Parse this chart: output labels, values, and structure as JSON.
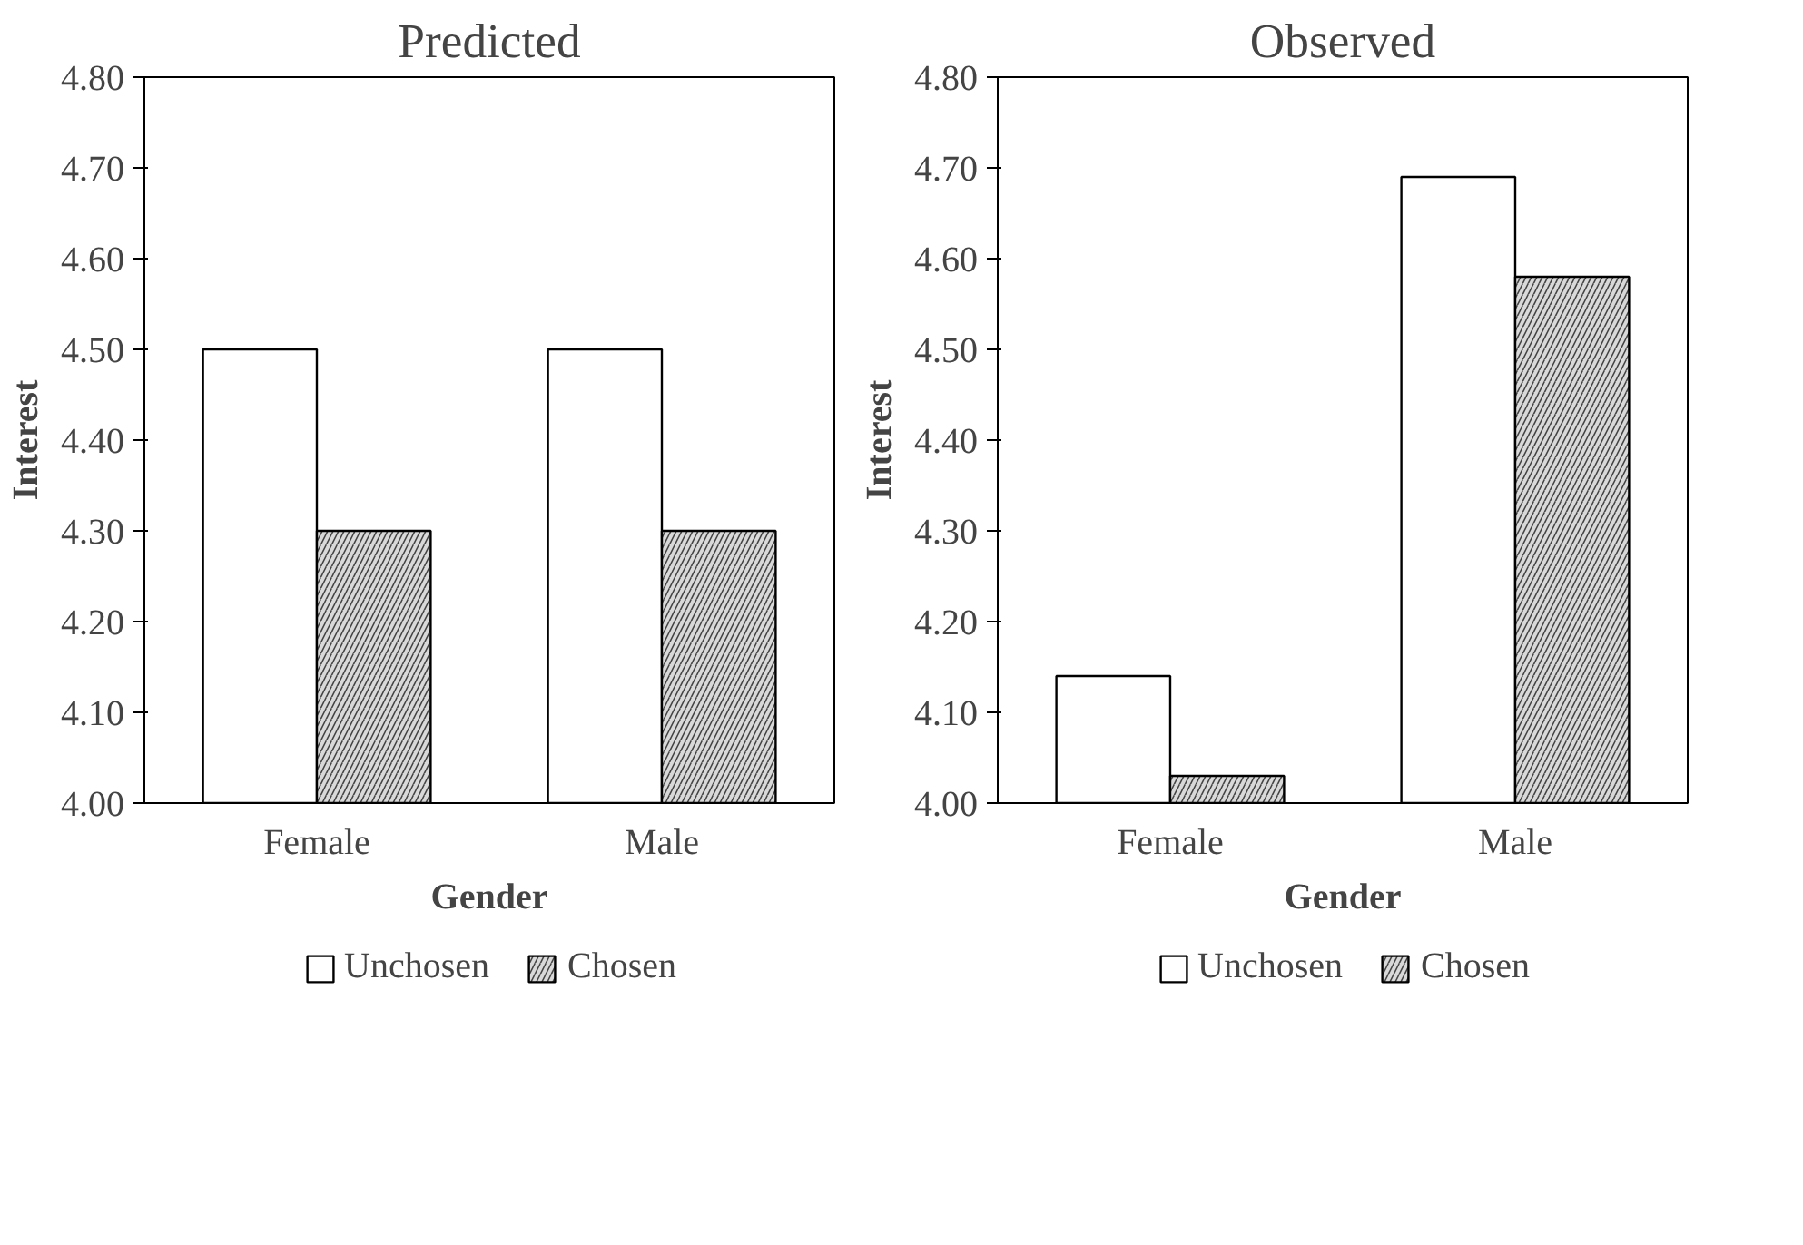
{
  "chart_data": [
    {
      "type": "bar",
      "title": "Predicted",
      "xlabel": "Gender",
      "ylabel": "Interest",
      "categories": [
        "Female",
        "Male"
      ],
      "series": [
        {
          "name": "Unchosen",
          "color": "#ffffff",
          "values": [
            4.5,
            4.5
          ]
        },
        {
          "name": "Chosen",
          "color": "#d9d9d9",
          "values": [
            4.3,
            4.3
          ]
        }
      ],
      "ylim": [
        4.0,
        4.8
      ],
      "yticks": [
        {
          "value": 4.0,
          "label": "4.00"
        },
        {
          "value": 4.1,
          "label": "4.10"
        },
        {
          "value": 4.2,
          "label": "4.20"
        },
        {
          "value": 4.3,
          "label": "4.30"
        },
        {
          "value": 4.4,
          "label": "4.40"
        },
        {
          "value": 4.5,
          "label": "4.50"
        },
        {
          "value": 4.6,
          "label": "4.60"
        },
        {
          "value": 4.7,
          "label": "4.70"
        },
        {
          "value": 4.8,
          "label": "4.80"
        }
      ],
      "grid": false,
      "legend": "bottom"
    },
    {
      "type": "bar",
      "title": "Observed",
      "xlabel": "Gender",
      "ylabel": "Interest",
      "categories": [
        "Female",
        "Male"
      ],
      "series": [
        {
          "name": "Unchosen",
          "color": "#ffffff",
          "values": [
            4.14,
            4.69
          ]
        },
        {
          "name": "Chosen",
          "color": "#d9d9d9",
          "values": [
            4.03,
            4.58
          ]
        }
      ],
      "ylim": [
        4.0,
        4.8
      ],
      "yticks": [
        {
          "value": 4.0,
          "label": "4.00"
        },
        {
          "value": 4.1,
          "label": "4.10"
        },
        {
          "value": 4.2,
          "label": "4.20"
        },
        {
          "value": 4.3,
          "label": "4.30"
        },
        {
          "value": 4.4,
          "label": "4.40"
        },
        {
          "value": 4.5,
          "label": "4.50"
        },
        {
          "value": 4.6,
          "label": "4.60"
        },
        {
          "value": 4.7,
          "label": "4.70"
        },
        {
          "value": 4.8,
          "label": "4.80"
        }
      ],
      "grid": false,
      "legend": "bottom"
    }
  ]
}
